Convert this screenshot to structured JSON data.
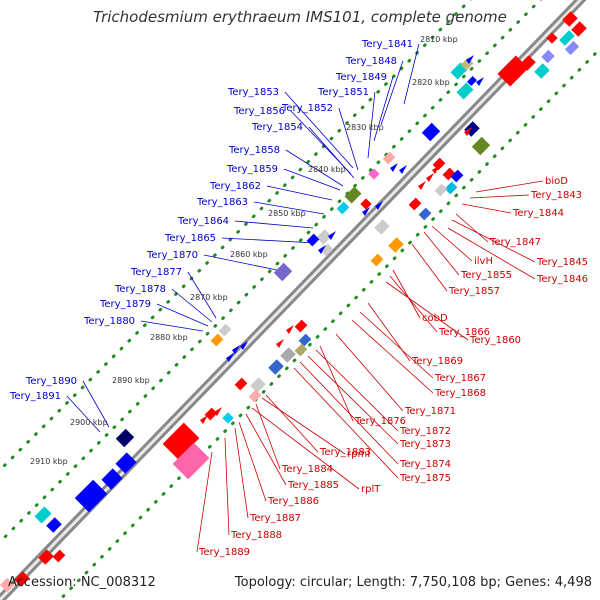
{
  "title": "Trichodesmium erythraeum IMS101, complete genome",
  "footer": {
    "accession": "Accession: NC_008312",
    "topology": "Topology: circular; Length: 7,750,108 bp; Genes: 4,498"
  },
  "scale_ticks": [
    "2810 kbp",
    "2820 kbp",
    "2830 kbp",
    "2840 kbp",
    "2850 kbp",
    "2860 kbp",
    "2870 kbp",
    "2880 kbp",
    "2890 kbp",
    "2900 kbp",
    "2910 kbp"
  ],
  "forward_labels": [
    "Tery_1841",
    "Tery_1848",
    "Tery_1849",
    "Tery_1851",
    "Tery_1853",
    "Tery_1852",
    "Tery_1856",
    "Tery_1854",
    "Tery_1858",
    "Tery_1859",
    "Tery_1862",
    "Tery_1863",
    "Tery_1864",
    "Tery_1865",
    "Tery_1870",
    "Tery_1877",
    "Tery_1878",
    "Tery_1879",
    "Tery_1880",
    "Tery_1890",
    "Tery_1891"
  ],
  "reverse_labels": [
    "bioD",
    "Tery_1843",
    "Tery_1844",
    "Tery_1847",
    "Tery_1845",
    "Tery_1846",
    "ilvH",
    "Tery_1855",
    "Tery_1857",
    "cobD",
    "Tery_1866",
    "Tery_1860",
    "Tery_1869",
    "Tery_1867",
    "Tery_1868",
    "Tery_1871",
    "Tery_1876",
    "Tery_1872",
    "Tery_1873",
    "Tery_1874",
    "Tery_1875",
    "Tery_1883",
    "rpmI",
    "Tery_1884",
    "rplT",
    "Tery_1885",
    "Tery_1886",
    "Tery_1887",
    "Tery_1888",
    "Tery_1889"
  ],
  "colors": {
    "forward_label": "#0000cc",
    "reverse_label": "#cc0000",
    "backbone": "#888888",
    "dots": "#228b22",
    "forward_gene": "#0000ff",
    "reverse_gene": "#ff0000"
  }
}
